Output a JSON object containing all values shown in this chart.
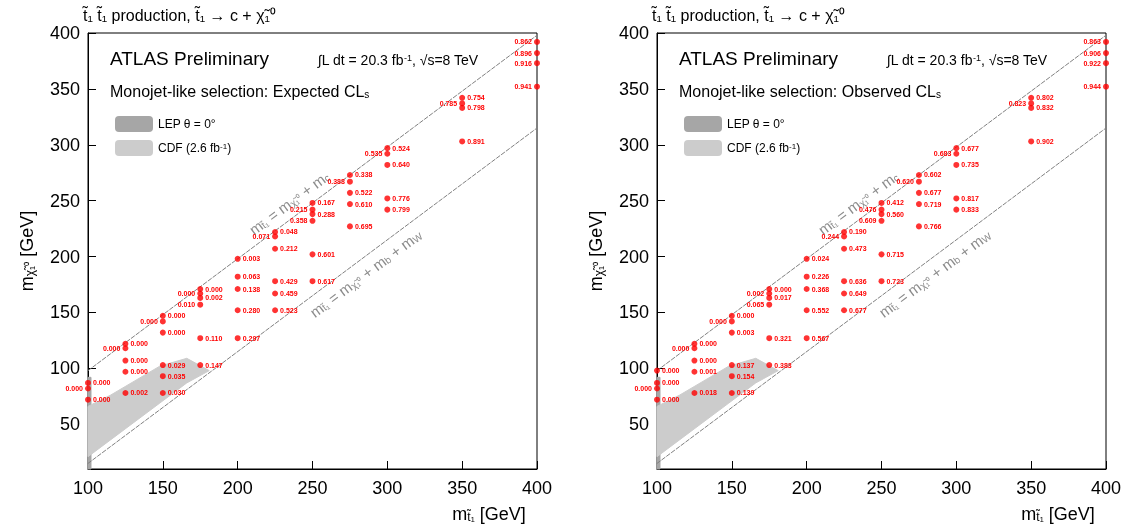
{
  "chart_data": [
    {
      "type": "scatter",
      "title": "t̃₁ t̃₁ production, t̃₁ → c + χ̃₁⁰",
      "xlabel": "m$_{t̃₁}$ [GeV]",
      "ylabel": "m$_{χ̃₁⁰}$ [GeV]",
      "annotations": [
        "ATLAS Preliminary",
        "∫L dt = 20.3 fb$^{-1}$, √s=8 TeV",
        "Monojet-like selection: Expected CL$_{s}$",
        {
          "text": "m$_{t̃₁}$ = m$_{χ̃₁⁰}$ + m$_{c}$",
          "x": 240,
          "y": 238
        },
        {
          "text": "m$_{t̃₁}$ = m$_{χ̃₁⁰}$ + m$_{b}$ + m$_{W}$",
          "x": 280,
          "y": 195
        },
        {
          "text": "0.000",
          "x": 100,
          "y": 87
        },
        {
          "text": "0.000",
          "x": 100,
          "y": 82
        },
        {
          "text": "0.000",
          "x": 100,
          "y": 72
        },
        {
          "text": "0.000",
          "x": 125,
          "y": 122
        },
        {
          "text": "0.000",
          "x": 125,
          "y": 118
        },
        {
          "text": "0.000",
          "x": 125,
          "y": 107
        },
        {
          "text": "0.000",
          "x": 125,
          "y": 97
        },
        {
          "text": "0.002",
          "x": 125,
          "y": 78
        },
        {
          "text": "0.000",
          "x": 150,
          "y": 147
        },
        {
          "text": "0.000",
          "x": 150,
          "y": 142
        },
        {
          "text": "0.000",
          "x": 150,
          "y": 132
        },
        {
          "text": "0.029",
          "x": 150,
          "y": 103
        },
        {
          "text": "0.035",
          "x": 150,
          "y": 93
        },
        {
          "text": "0.030",
          "x": 150,
          "y": 78
        },
        {
          "text": "0.000",
          "x": 175,
          "y": 171
        },
        {
          "text": "0.000",
          "x": 175,
          "y": 167
        },
        {
          "text": "0.002",
          "x": 175,
          "y": 163
        },
        {
          "text": "0.010",
          "x": 175,
          "y": 157
        },
        {
          "text": "0.110",
          "x": 175,
          "y": 127
        },
        {
          "text": "0.147",
          "x": 175,
          "y": 103
        },
        {
          "text": "0.003",
          "x": 200,
          "y": 198
        },
        {
          "text": "0.063",
          "x": 200,
          "y": 182
        },
        {
          "text": "0.138",
          "x": 200,
          "y": 171
        },
        {
          "text": "0.280",
          "x": 200,
          "y": 152
        },
        {
          "text": "0.297",
          "x": 200,
          "y": 127
        },
        {
          "text": "0.048",
          "x": 225,
          "y": 222
        },
        {
          "text": "0.071",
          "x": 225,
          "y": 218
        },
        {
          "text": "0.212",
          "x": 225,
          "y": 207
        },
        {
          "text": "0.429",
          "x": 225,
          "y": 178
        },
        {
          "text": "0.459",
          "x": 225,
          "y": 167
        },
        {
          "text": "0.523",
          "x": 225,
          "y": 152
        },
        {
          "text": "0.167",
          "x": 250,
          "y": 248
        },
        {
          "text": "0.215",
          "x": 250,
          "y": 242
        },
        {
          "text": "0.288",
          "x": 250,
          "y": 238
        },
        {
          "text": "0.358",
          "x": 250,
          "y": 232
        },
        {
          "text": "0.601",
          "x": 250,
          "y": 202
        },
        {
          "text": "0.617",
          "x": 250,
          "y": 178
        },
        {
          "text": "0.338",
          "x": 275,
          "y": 273
        },
        {
          "text": "0.388",
          "x": 275,
          "y": 267
        },
        {
          "text": "0.522",
          "x": 275,
          "y": 257
        },
        {
          "text": "0.610",
          "x": 275,
          "y": 247
        },
        {
          "text": "0.695",
          "x": 275,
          "y": 227
        },
        {
          "text": "0.524",
          "x": 300,
          "y": 297
        },
        {
          "text": "0.535",
          "x": 300,
          "y": 292
        },
        {
          "text": "0.640",
          "x": 300,
          "y": 282
        },
        {
          "text": "0.776",
          "x": 300,
          "y": 252
        },
        {
          "text": "0.799",
          "x": 300,
          "y": 242
        },
        {
          "text": "0.754",
          "x": 350,
          "y": 342
        },
        {
          "text": "0.785",
          "x": 350,
          "y": 337
        },
        {
          "text": "0.798",
          "x": 350,
          "y": 333
        },
        {
          "text": "0.891",
          "x": 350,
          "y": 303
        },
        {
          "text": "0.862",
          "x": 400,
          "y": 392
        },
        {
          "text": "0.896",
          "x": 400,
          "y": 382
        },
        {
          "text": "0.916",
          "x": 400,
          "y": 373
        },
        {
          "text": "0.941",
          "x": 400,
          "y": 352
        }
      ],
      "xlim": [
        100,
        400
      ],
      "ylim": [
        10,
        400
      ],
      "xticks": [
        100,
        150,
        200,
        250,
        300,
        350,
        400
      ],
      "yticks": [
        50,
        100,
        150,
        200,
        250,
        300,
        350,
        400
      ],
      "legend": "top left",
      "series": [
        {
          "marker": "circle",
          "color": "#ff0000",
          "x": [
            100,
            100,
            100,
            125,
            125,
            125,
            125,
            125,
            150,
            150,
            150,
            150,
            150,
            150,
            175,
            175,
            175,
            175,
            175,
            175,
            200,
            200,
            200,
            200,
            200,
            225,
            225,
            225,
            225,
            225,
            225,
            250,
            250,
            250,
            250,
            250,
            250,
            275,
            275,
            275,
            275,
            275,
            300,
            300,
            300,
            300,
            300,
            350,
            350,
            350,
            350,
            400,
            400,
            400,
            400
          ],
          "values": [
            87,
            82,
            72,
            122,
            118,
            107,
            97,
            78,
            147,
            142,
            132,
            103,
            93,
            78,
            171,
            167,
            163,
            157,
            127,
            103,
            198,
            182,
            171,
            152,
            127,
            222,
            218,
            207,
            178,
            167,
            152,
            248,
            242,
            238,
            232,
            202,
            178,
            273,
            267,
            257,
            247,
            227,
            297,
            292,
            282,
            252,
            242,
            342,
            337,
            333,
            303,
            392,
            382,
            373,
            352
          ]
        },
        {
          "type": "line",
          "color": "#808080",
          "line_style": "dashed",
          "marker": "none",
          "x": [
            100,
            400
          ],
          "values": [
            98,
            398
          ]
        },
        {
          "type": "line",
          "color": "#808080",
          "line_style": "dashed",
          "marker": "none",
          "x": [
            100,
            400
          ],
          "values": [
            15,
            315
          ]
        },
        {
          "type": "area",
          "name": "LEP θ = 0°",
          "color": "#a6a6a6",
          "x": [
            100,
            102
          ],
          "values": [
            92,
            92
          ]
        },
        {
          "type": "area",
          "name": "CDF (2.6 fb$^{-1}$)",
          "color": "#cccccc",
          "x": [
            100,
            115,
            148,
            166,
            181,
            166,
            148,
            115,
            100
          ],
          "values": [
            66,
            76,
            102,
            109,
            98,
            87,
            69,
            36,
            21
          ]
        }
      ]
    },
    {
      "type": "scatter",
      "title": "t̃₁ t̃₁ production, t̃₁ → c + χ̃₁⁰",
      "xlabel": "m$_{t̃₁}$ [GeV]",
      "ylabel": "m$_{χ̃₁⁰}$ [GeV]",
      "annotations": [
        "ATLAS Preliminary",
        "∫L dt = 20.3 fb$^{-1}$, √s=8 TeV",
        "Monojet-like selection: Observed CL$_{s}$",
        {
          "text": "m$_{t̃₁}$ = m$_{χ̃₁⁰}$ + m$_{c}$",
          "x": 240,
          "y": 238
        },
        {
          "text": "m$_{t̃₁}$ = m$_{χ̃₁⁰}$ + m$_{b}$ + m$_{W}$",
          "x": 280,
          "y": 195
        },
        {
          "text": "0.000",
          "x": 100,
          "y": 98
        },
        {
          "text": "0.000",
          "x": 100,
          "y": 87
        },
        {
          "text": "0.000",
          "x": 100,
          "y": 82
        },
        {
          "text": "0.000",
          "x": 100,
          "y": 72
        },
        {
          "text": "0.000",
          "x": 125,
          "y": 122
        },
        {
          "text": "0.000",
          "x": 125,
          "y": 118
        },
        {
          "text": "0.000",
          "x": 125,
          "y": 107
        },
        {
          "text": "0.001",
          "x": 125,
          "y": 97
        },
        {
          "text": "0.018",
          "x": 125,
          "y": 78
        },
        {
          "text": "0.000",
          "x": 150,
          "y": 147
        },
        {
          "text": "0.000",
          "x": 150,
          "y": 142
        },
        {
          "text": "0.003",
          "x": 150,
          "y": 132
        },
        {
          "text": "0.137",
          "x": 150,
          "y": 103
        },
        {
          "text": "0.154",
          "x": 150,
          "y": 93
        },
        {
          "text": "0.139",
          "x": 150,
          "y": 78
        },
        {
          "text": "0.000",
          "x": 175,
          "y": 171
        },
        {
          "text": "0.002",
          "x": 175,
          "y": 167
        },
        {
          "text": "0.017",
          "x": 175,
          "y": 163
        },
        {
          "text": "0.065",
          "x": 175,
          "y": 157
        },
        {
          "text": "0.321",
          "x": 175,
          "y": 127
        },
        {
          "text": "0.383",
          "x": 175,
          "y": 103
        },
        {
          "text": "0.024",
          "x": 200,
          "y": 198
        },
        {
          "text": "0.226",
          "x": 200,
          "y": 182
        },
        {
          "text": "0.368",
          "x": 200,
          "y": 171
        },
        {
          "text": "0.552",
          "x": 200,
          "y": 152
        },
        {
          "text": "0.567",
          "x": 200,
          "y": 127
        },
        {
          "text": "0.190",
          "x": 225,
          "y": 222
        },
        {
          "text": "0.244",
          "x": 225,
          "y": 218
        },
        {
          "text": "0.473",
          "x": 225,
          "y": 207
        },
        {
          "text": "0.636",
          "x": 225,
          "y": 178
        },
        {
          "text": "0.649",
          "x": 225,
          "y": 167
        },
        {
          "text": "0.677",
          "x": 225,
          "y": 152
        },
        {
          "text": "0.412",
          "x": 250,
          "y": 248
        },
        {
          "text": "0.476",
          "x": 250,
          "y": 242
        },
        {
          "text": "0.560",
          "x": 250,
          "y": 238
        },
        {
          "text": "0.609",
          "x": 250,
          "y": 232
        },
        {
          "text": "0.715",
          "x": 250,
          "y": 202
        },
        {
          "text": "0.723",
          "x": 250,
          "y": 178
        },
        {
          "text": "0.602",
          "x": 275,
          "y": 273
        },
        {
          "text": "0.620",
          "x": 275,
          "y": 267
        },
        {
          "text": "0.677",
          "x": 275,
          "y": 257
        },
        {
          "text": "0.719",
          "x": 275,
          "y": 247
        },
        {
          "text": "0.766",
          "x": 275,
          "y": 227
        },
        {
          "text": "0.677",
          "x": 300,
          "y": 297
        },
        {
          "text": "0.683",
          "x": 300,
          "y": 292
        },
        {
          "text": "0.735",
          "x": 300,
          "y": 282
        },
        {
          "text": "0.817",
          "x": 300,
          "y": 252
        },
        {
          "text": "0.833",
          "x": 300,
          "y": 242
        },
        {
          "text": "0.802",
          "x": 350,
          "y": 342
        },
        {
          "text": "0.823",
          "x": 350,
          "y": 337
        },
        {
          "text": "0.832",
          "x": 350,
          "y": 333
        },
        {
          "text": "0.902",
          "x": 350,
          "y": 303
        },
        {
          "text": "0.863",
          "x": 400,
          "y": 392
        },
        {
          "text": "0.906",
          "x": 400,
          "y": 382
        },
        {
          "text": "0.922",
          "x": 400,
          "y": 373
        },
        {
          "text": "0.944",
          "x": 400,
          "y": 352
        }
      ],
      "xlim": [
        100,
        400
      ],
      "ylim": [
        10,
        400
      ],
      "xticks": [
        100,
        150,
        200,
        250,
        300,
        350,
        400
      ],
      "yticks": [
        50,
        100,
        150,
        200,
        250,
        300,
        350,
        400
      ],
      "legend": "top left",
      "series": [
        {
          "marker": "circle",
          "color": "#ff0000",
          "x": [
            100,
            100,
            100,
            100,
            125,
            125,
            125,
            125,
            125,
            150,
            150,
            150,
            150,
            150,
            150,
            175,
            175,
            175,
            175,
            175,
            175,
            200,
            200,
            200,
            200,
            200,
            225,
            225,
            225,
            225,
            225,
            225,
            250,
            250,
            250,
            250,
            250,
            250,
            275,
            275,
            275,
            275,
            275,
            300,
            300,
            300,
            300,
            300,
            350,
            350,
            350,
            350,
            400,
            400,
            400,
            400
          ],
          "values": [
            98,
            87,
            82,
            72,
            122,
            118,
            107,
            97,
            78,
            147,
            142,
            132,
            103,
            93,
            78,
            171,
            167,
            163,
            157,
            127,
            103,
            198,
            182,
            171,
            152,
            127,
            222,
            218,
            207,
            178,
            167,
            152,
            248,
            242,
            238,
            232,
            202,
            178,
            273,
            267,
            257,
            247,
            227,
            297,
            292,
            282,
            252,
            242,
            342,
            337,
            333,
            303,
            392,
            382,
            373,
            352
          ]
        },
        {
          "type": "line",
          "color": "#808080",
          "line_style": "dashed",
          "marker": "none",
          "x": [
            100,
            400
          ],
          "values": [
            98,
            398
          ]
        },
        {
          "type": "line",
          "color": "#808080",
          "line_style": "dashed",
          "marker": "none",
          "x": [
            100,
            400
          ],
          "values": [
            15,
            315
          ]
        },
        {
          "type": "area",
          "name": "LEP θ = 0°",
          "color": "#a6a6a6",
          "x": [
            100,
            102
          ],
          "values": [
            92,
            92
          ]
        },
        {
          "type": "area",
          "name": "CDF (2.6 fb$^{-1}$)",
          "color": "#cccccc",
          "x": [
            100,
            115,
            148,
            166,
            181,
            166,
            148,
            115,
            100
          ],
          "values": [
            66,
            76,
            102,
            109,
            98,
            87,
            69,
            36,
            21
          ]
        }
      ]
    }
  ]
}
